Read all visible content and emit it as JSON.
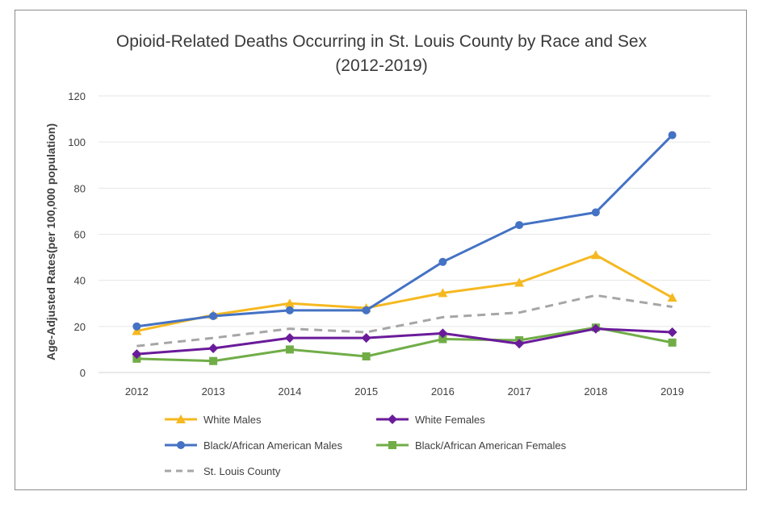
{
  "chart_data": {
    "type": "line",
    "title_line1": "Opioid-Related Deaths Occurring in St. Louis County by Race and Sex",
    "title_line2": "(2012-2019)",
    "xlabel": "",
    "ylabel": "Age-Adjusted Rates(per 100,000 population)",
    "categories": [
      "2012",
      "2013",
      "2014",
      "2015",
      "2016",
      "2017",
      "2018",
      "2019"
    ],
    "ylim": [
      0,
      120
    ],
    "yticks": [
      0,
      20,
      40,
      60,
      80,
      100,
      120
    ],
    "grid": true,
    "legend_position": "bottom",
    "series": [
      {
        "name": "White Males",
        "color": "#f5b820",
        "marker": "triangle",
        "dash": false,
        "values": [
          18,
          25,
          30,
          28,
          34.5,
          39,
          51,
          32.5
        ]
      },
      {
        "name": "White Females",
        "color": "#6a1b9a",
        "marker": "diamond",
        "dash": false,
        "values": [
          8,
          10.5,
          15,
          15,
          17,
          12.5,
          19,
          17.5
        ]
      },
      {
        "name": "Black/African American Males",
        "color": "#4472c4",
        "marker": "circle",
        "dash": false,
        "values": [
          20,
          24.5,
          27,
          27,
          48,
          64,
          69.5,
          103
        ]
      },
      {
        "name": "Black/African American Females",
        "color": "#70ad47",
        "marker": "square",
        "dash": false,
        "values": [
          6,
          5,
          10,
          7,
          14.5,
          14,
          19.5,
          13
        ]
      },
      {
        "name": "St. Louis County",
        "color": "#a6a6a6",
        "marker": "none",
        "dash": true,
        "values": [
          11.5,
          15,
          19,
          17.5,
          24,
          26,
          33.5,
          28.5
        ]
      }
    ]
  }
}
